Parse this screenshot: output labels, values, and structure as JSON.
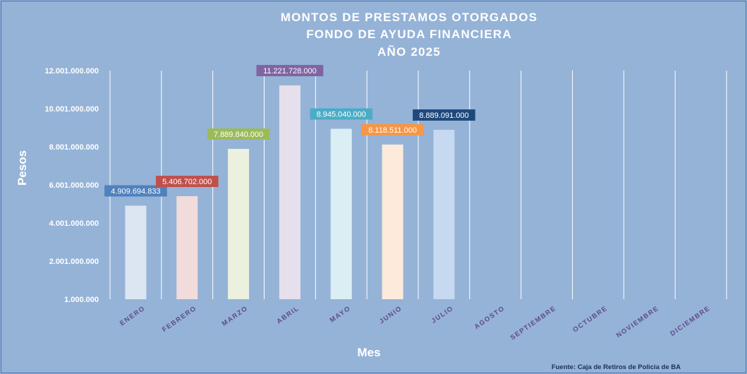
{
  "chart_data": {
    "type": "bar",
    "title_lines": [
      "MONTOS DE PRESTAMOS  OTORGADOS",
      "FONDO DE AYUDA FINANCIERA",
      "AÑO  2025"
    ],
    "xlabel": "Mes",
    "ylabel": "Pesos",
    "categories": [
      "ENERO",
      "FEBRERO",
      "MARZO",
      "ABRIL",
      "MAYO",
      "JUNIO",
      "JULIO",
      "AGOSTO",
      "SEPTIEMBRE",
      "OCTUBRE",
      "NOVIEMBRE",
      "DICIEMBRE"
    ],
    "values": [
      4909694833,
      5406702000,
      7889840000,
      11221728000,
      8945040000,
      8118511000,
      8889091000,
      null,
      null,
      null,
      null,
      null
    ],
    "value_labels": [
      "4.909.694.833",
      "5.406.702.000",
      "7.889.840.000",
      "11.221.728.000",
      "8.945.040.000",
      "8.118.511.000",
      "8.889.091.000",
      "",
      "",
      "",
      "",
      ""
    ],
    "bar_colors": [
      "#dce6f2",
      "#f2dcdb",
      "#ebf1de",
      "#e6e0ec",
      "#dbeef4",
      "#fdeada",
      "#c6d9f1"
    ],
    "label_colors": [
      "#4f81bd",
      "#c0504d",
      "#9bbb59",
      "#8064a2",
      "#4bacc6",
      "#f79646",
      "#1f497d"
    ],
    "yticks": [
      1000000,
      2001000000,
      4001000000,
      6001000000,
      8001000000,
      10001000000,
      12001000000
    ],
    "ytick_labels": [
      "1.000.000",
      "2.001.000.000",
      "4.001.000.000",
      "6.001.000.000",
      "8.001.000.000",
      "10.001.000.000",
      "12.001.000.000"
    ],
    "ylim": [
      1000000,
      12001000000
    ],
    "grid": "vertical",
    "legend": "none"
  },
  "source_note": "Fuente: Caja de Retiros de Policia de BA"
}
